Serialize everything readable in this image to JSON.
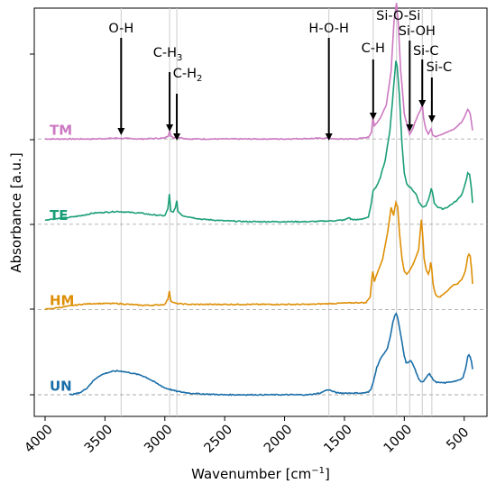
{
  "chart_data": {
    "type": "line",
    "xlabel": "Wavenumber [cm",
    "xlabel_sup": "−1",
    "xlabel_end": "]",
    "ylabel": "Absorbance [a.u.]",
    "xlim": [
      4000,
      400
    ],
    "x_reversed": true,
    "xticks": [
      4000,
      3500,
      3000,
      2500,
      2000,
      1500,
      1000,
      500
    ],
    "yticks_labeled": false,
    "grid": "vertical reference lines at annotated wavenumbers",
    "reference_lines": [
      3365,
      2960,
      2900,
      1630,
      1260,
      1065,
      955,
      850,
      770
    ],
    "annotations": [
      {
        "label": "O-H",
        "x": 3365
      },
      {
        "label": "C-H",
        "sub": "3",
        "x": 2960
      },
      {
        "label": "C-H",
        "sub": "2",
        "x": 2900
      },
      {
        "label": "H-O-H",
        "x": 1630
      },
      {
        "label": "C-H",
        "x": 1260
      },
      {
        "label": "Si-O-Si",
        "x": 1065
      },
      {
        "label": "Si-OH",
        "x": 955
      },
      {
        "label": "Si-C",
        "x": 850
      },
      {
        "label": "Si-C",
        "x": 770
      }
    ],
    "series": [
      {
        "name": "TM",
        "color": "#cc79c1",
        "baseline": 3.0,
        "points": [
          [
            4000,
            3.0
          ],
          [
            3800,
            3.0
          ],
          [
            3600,
            3.0
          ],
          [
            3400,
            3.01
          ],
          [
            3200,
            3.0
          ],
          [
            3000,
            3.01
          ],
          [
            2970,
            3.04
          ],
          [
            2960,
            3.1
          ],
          [
            2950,
            3.03
          ],
          [
            2920,
            3.01
          ],
          [
            2905,
            3.05
          ],
          [
            2895,
            3.02
          ],
          [
            2800,
            3.0
          ],
          [
            2400,
            3.0
          ],
          [
            2000,
            3.0
          ],
          [
            1640,
            3.01
          ],
          [
            1630,
            3.02
          ],
          [
            1600,
            3.0
          ],
          [
            1400,
            3.0
          ],
          [
            1300,
            3.02
          ],
          [
            1275,
            3.08
          ],
          [
            1262,
            3.25
          ],
          [
            1250,
            3.15
          ],
          [
            1200,
            3.25
          ],
          [
            1150,
            3.4
          ],
          [
            1110,
            3.8
          ],
          [
            1085,
            4.4
          ],
          [
            1065,
            4.6
          ],
          [
            1050,
            4.35
          ],
          [
            1030,
            3.8
          ],
          [
            1000,
            3.3
          ],
          [
            975,
            3.15
          ],
          [
            955,
            3.05
          ],
          [
            935,
            3.1
          ],
          [
            910,
            3.2
          ],
          [
            880,
            3.3
          ],
          [
            860,
            3.35
          ],
          [
            850,
            3.42
          ],
          [
            840,
            3.25
          ],
          [
            820,
            3.12
          ],
          [
            800,
            3.06
          ],
          [
            785,
            3.1
          ],
          [
            775,
            3.12
          ],
          [
            765,
            3.05
          ],
          [
            740,
            3.03
          ],
          [
            700,
            3.05
          ],
          [
            640,
            3.08
          ],
          [
            580,
            3.12
          ],
          [
            520,
            3.2
          ],
          [
            490,
            3.28
          ],
          [
            470,
            3.35
          ],
          [
            450,
            3.3
          ],
          [
            430,
            3.1
          ]
        ]
      },
      {
        "name": "TE",
        "color": "#1a9e77",
        "baseline": 2.0,
        "points": [
          [
            4000,
            2.05
          ],
          [
            3950,
            2.06
          ],
          [
            3800,
            2.08
          ],
          [
            3700,
            2.1
          ],
          [
            3600,
            2.13
          ],
          [
            3500,
            2.14
          ],
          [
            3400,
            2.15
          ],
          [
            3300,
            2.14
          ],
          [
            3200,
            2.13
          ],
          [
            3100,
            2.11
          ],
          [
            3000,
            2.1
          ],
          [
            2975,
            2.18
          ],
          [
            2962,
            2.35
          ],
          [
            2950,
            2.15
          ],
          [
            2930,
            2.14
          ],
          [
            2912,
            2.2
          ],
          [
            2900,
            2.27
          ],
          [
            2890,
            2.15
          ],
          [
            2850,
            2.1
          ],
          [
            2700,
            2.06
          ],
          [
            2500,
            2.04
          ],
          [
            2300,
            2.03
          ],
          [
            2000,
            2.03
          ],
          [
            1800,
            2.03
          ],
          [
            1600,
            2.04
          ],
          [
            1500,
            2.05
          ],
          [
            1460,
            2.08
          ],
          [
            1450,
            2.06
          ],
          [
            1400,
            2.05
          ],
          [
            1300,
            2.08
          ],
          [
            1275,
            2.25
          ],
          [
            1260,
            2.4
          ],
          [
            1230,
            2.45
          ],
          [
            1200,
            2.55
          ],
          [
            1160,
            2.75
          ],
          [
            1120,
            3.1
          ],
          [
            1090,
            3.6
          ],
          [
            1070,
            3.92
          ],
          [
            1060,
            3.85
          ],
          [
            1040,
            3.5
          ],
          [
            1020,
            2.95
          ],
          [
            1000,
            2.6
          ],
          [
            980,
            2.48
          ],
          [
            960,
            2.44
          ],
          [
            940,
            2.42
          ],
          [
            920,
            2.38
          ],
          [
            900,
            2.35
          ],
          [
            880,
            2.26
          ],
          [
            860,
            2.22
          ],
          [
            840,
            2.2
          ],
          [
            820,
            2.22
          ],
          [
            800,
            2.28
          ],
          [
            785,
            2.35
          ],
          [
            775,
            2.42
          ],
          [
            765,
            2.38
          ],
          [
            750,
            2.25
          ],
          [
            720,
            2.2
          ],
          [
            680,
            2.18
          ],
          [
            640,
            2.2
          ],
          [
            600,
            2.24
          ],
          [
            560,
            2.28
          ],
          [
            520,
            2.35
          ],
          [
            490,
            2.48
          ],
          [
            470,
            2.6
          ],
          [
            455,
            2.58
          ],
          [
            440,
            2.42
          ],
          [
            430,
            2.25
          ]
        ]
      },
      {
        "name": "HM",
        "color": "#de8f05",
        "baseline": 1.0,
        "points": [
          [
            4000,
            1.0
          ],
          [
            3900,
            1.02
          ],
          [
            3800,
            1.04
          ],
          [
            3700,
            1.06
          ],
          [
            3600,
            1.07
          ],
          [
            3500,
            1.07
          ],
          [
            3400,
            1.07
          ],
          [
            3300,
            1.06
          ],
          [
            3200,
            1.05
          ],
          [
            3100,
            1.05
          ],
          [
            3000,
            1.06
          ],
          [
            2975,
            1.12
          ],
          [
            2962,
            1.22
          ],
          [
            2950,
            1.1
          ],
          [
            2930,
            1.08
          ],
          [
            2900,
            1.07
          ],
          [
            2800,
            1.06
          ],
          [
            2500,
            1.06
          ],
          [
            2200,
            1.06
          ],
          [
            2000,
            1.06
          ],
          [
            1800,
            1.06
          ],
          [
            1600,
            1.07
          ],
          [
            1400,
            1.08
          ],
          [
            1320,
            1.08
          ],
          [
            1285,
            1.15
          ],
          [
            1270,
            1.38
          ],
          [
            1262,
            1.45
          ],
          [
            1250,
            1.33
          ],
          [
            1220,
            1.45
          ],
          [
            1180,
            1.6
          ],
          [
            1140,
            1.9
          ],
          [
            1110,
            2.2
          ],
          [
            1090,
            2.1
          ],
          [
            1070,
            2.26
          ],
          [
            1055,
            2.2
          ],
          [
            1040,
            1.9
          ],
          [
            1020,
            1.6
          ],
          [
            1000,
            1.45
          ],
          [
            980,
            1.42
          ],
          [
            960,
            1.45
          ],
          [
            940,
            1.5
          ],
          [
            920,
            1.55
          ],
          [
            900,
            1.62
          ],
          [
            880,
            1.7
          ],
          [
            865,
            1.95
          ],
          [
            857,
            2.05
          ],
          [
            848,
            1.9
          ],
          [
            835,
            1.6
          ],
          [
            815,
            1.45
          ],
          [
            800,
            1.42
          ],
          [
            790,
            1.45
          ],
          [
            780,
            1.55
          ],
          [
            772,
            1.5
          ],
          [
            760,
            1.3
          ],
          [
            740,
            1.18
          ],
          [
            720,
            1.15
          ],
          [
            700,
            1.15
          ],
          [
            680,
            1.17
          ],
          [
            640,
            1.22
          ],
          [
            600,
            1.28
          ],
          [
            560,
            1.3
          ],
          [
            520,
            1.35
          ],
          [
            490,
            1.45
          ],
          [
            470,
            1.62
          ],
          [
            460,
            1.65
          ],
          [
            450,
            1.63
          ],
          [
            440,
            1.5
          ],
          [
            430,
            1.3
          ]
        ]
      },
      {
        "name": "UN",
        "color": "#1a6ea8",
        "baseline": 0.0,
        "points": [
          [
            3800,
            0.0
          ],
          [
            3750,
            0.01
          ],
          [
            3700,
            0.03
          ],
          [
            3650,
            0.08
          ],
          [
            3600,
            0.16
          ],
          [
            3550,
            0.22
          ],
          [
            3500,
            0.25
          ],
          [
            3450,
            0.27
          ],
          [
            3400,
            0.28
          ],
          [
            3350,
            0.275
          ],
          [
            3300,
            0.26
          ],
          [
            3250,
            0.245
          ],
          [
            3200,
            0.23
          ],
          [
            3150,
            0.2
          ],
          [
            3100,
            0.16
          ],
          [
            3050,
            0.12
          ],
          [
            3000,
            0.08
          ],
          [
            2950,
            0.06
          ],
          [
            2900,
            0.04
          ],
          [
            2800,
            0.02
          ],
          [
            2700,
            0.01
          ],
          [
            2500,
            0.0
          ],
          [
            2300,
            0.0
          ],
          [
            2000,
            0.0
          ],
          [
            1800,
            0.0
          ],
          [
            1700,
            0.02
          ],
          [
            1660,
            0.05
          ],
          [
            1630,
            0.06
          ],
          [
            1600,
            0.04
          ],
          [
            1550,
            0.02
          ],
          [
            1450,
            0.02
          ],
          [
            1350,
            0.02
          ],
          [
            1300,
            0.03
          ],
          [
            1280,
            0.06
          ],
          [
            1260,
            0.15
          ],
          [
            1230,
            0.32
          ],
          [
            1200,
            0.42
          ],
          [
            1170,
            0.48
          ],
          [
            1140,
            0.55
          ],
          [
            1115,
            0.7
          ],
          [
            1095,
            0.85
          ],
          [
            1080,
            0.93
          ],
          [
            1068,
            0.95
          ],
          [
            1055,
            0.9
          ],
          [
            1040,
            0.78
          ],
          [
            1020,
            0.62
          ],
          [
            1000,
            0.45
          ],
          [
            985,
            0.38
          ],
          [
            970,
            0.37
          ],
          [
            955,
            0.4
          ],
          [
            940,
            0.39
          ],
          [
            920,
            0.33
          ],
          [
            900,
            0.26
          ],
          [
            880,
            0.18
          ],
          [
            860,
            0.15
          ],
          [
            840,
            0.16
          ],
          [
            820,
            0.2
          ],
          [
            800,
            0.24
          ],
          [
            790,
            0.25
          ],
          [
            780,
            0.22
          ],
          [
            760,
            0.18
          ],
          [
            740,
            0.15
          ],
          [
            700,
            0.14
          ],
          [
            660,
            0.14
          ],
          [
            620,
            0.15
          ],
          [
            580,
            0.16
          ],
          [
            540,
            0.17
          ],
          [
            510,
            0.2
          ],
          [
            490,
            0.3
          ],
          [
            470,
            0.45
          ],
          [
            460,
            0.47
          ],
          [
            450,
            0.44
          ],
          [
            440,
            0.4
          ],
          [
            430,
            0.3
          ]
        ]
      }
    ],
    "series_label_y_offset": [
      0.1,
      0.1,
      0.1,
      0.1
    ]
  }
}
